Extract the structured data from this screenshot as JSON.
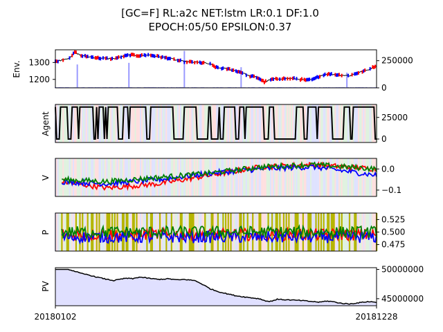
{
  "figure": {
    "title_line1": "[GC=F] RL:a2c NET:lstm LR:0.1 DF:1.0",
    "title_line2": "EPOCH:05/50 EPSILON:0.37"
  },
  "colors": {
    "buy": "#ff0000",
    "sell": "#0000ff",
    "hold": "#008000",
    "volume": "#9999ff",
    "agent_line": "#000000",
    "pv_fill": "#e0e0ff",
    "exploration": "#b5b500"
  },
  "x_axis": {
    "start_label": "20180102",
    "end_label": "20181228",
    "num_days": 250
  },
  "chart_data": [
    {
      "panel": "env",
      "type": "line",
      "ylabel": "Env.",
      "ylim": [
        1150,
        1375
      ],
      "yticks": [
        "1200",
        "1300"
      ],
      "twin_ylim": [
        0,
        350000
      ],
      "twin_yticks": [
        "0",
        "250000"
      ],
      "price_path": [
        {
          "x": 0,
          "y": 1305
        },
        {
          "x": 12,
          "y": 1330
        },
        {
          "x": 15,
          "y": 1362
        },
        {
          "x": 20,
          "y": 1340
        },
        {
          "x": 25,
          "y": 1335
        },
        {
          "x": 35,
          "y": 1325
        },
        {
          "x": 45,
          "y": 1322
        },
        {
          "x": 52,
          "y": 1335
        },
        {
          "x": 58,
          "y": 1345
        },
        {
          "x": 65,
          "y": 1340
        },
        {
          "x": 72,
          "y": 1345
        },
        {
          "x": 80,
          "y": 1335
        },
        {
          "x": 88,
          "y": 1325
        },
        {
          "x": 95,
          "y": 1312
        },
        {
          "x": 100,
          "y": 1305
        },
        {
          "x": 110,
          "y": 1300
        },
        {
          "x": 115,
          "y": 1298
        },
        {
          "x": 120,
          "y": 1290
        },
        {
          "x": 125,
          "y": 1270
        },
        {
          "x": 130,
          "y": 1265
        },
        {
          "x": 135,
          "y": 1260
        },
        {
          "x": 140,
          "y": 1250
        },
        {
          "x": 145,
          "y": 1240
        },
        {
          "x": 150,
          "y": 1220
        },
        {
          "x": 155,
          "y": 1215
        },
        {
          "x": 158,
          "y": 1205
        },
        {
          "x": 162,
          "y": 1185
        },
        {
          "x": 168,
          "y": 1200
        },
        {
          "x": 175,
          "y": 1205
        },
        {
          "x": 185,
          "y": 1205
        },
        {
          "x": 195,
          "y": 1195
        },
        {
          "x": 200,
          "y": 1200
        },
        {
          "x": 205,
          "y": 1220
        },
        {
          "x": 210,
          "y": 1232
        },
        {
          "x": 215,
          "y": 1230
        },
        {
          "x": 222,
          "y": 1225
        },
        {
          "x": 228,
          "y": 1222
        },
        {
          "x": 235,
          "y": 1240
        },
        {
          "x": 242,
          "y": 1255
        },
        {
          "x": 249,
          "y": 1282
        }
      ],
      "volume_spikes": [
        {
          "x": 17,
          "v": 215000
        },
        {
          "x": 57,
          "v": 230000
        },
        {
          "x": 100,
          "v": 340000
        },
        {
          "x": 144,
          "v": 190000
        },
        {
          "x": 226,
          "v": 140000
        }
      ]
    },
    {
      "panel": "agent",
      "type": "line",
      "ylabel": "Agent",
      "ylim": [
        -4000,
        40000
      ],
      "yticks": [
        "0",
        "25000"
      ],
      "levels": [
        0,
        37000
      ],
      "note": "number of units held by the agent, oscillating between 0 and the maximum"
    },
    {
      "panel": "value",
      "type": "line",
      "ylabel": "V",
      "ylim": [
        -0.13,
        0.05
      ],
      "yticks": [
        "0.0",
        "−0.1"
      ],
      "series": [
        {
          "color": "red",
          "path": [
            {
              "x": 5,
              "y": -0.06
            },
            {
              "x": 40,
              "y": -0.09
            },
            {
              "x": 80,
              "y": -0.07
            },
            {
              "x": 120,
              "y": -0.03
            },
            {
              "x": 160,
              "y": 0.01
            },
            {
              "x": 200,
              "y": 0.02
            },
            {
              "x": 249,
              "y": 0.0
            }
          ]
        },
        {
          "color": "blue",
          "path": [
            {
              "x": 5,
              "y": -0.06
            },
            {
              "x": 40,
              "y": -0.07
            },
            {
              "x": 80,
              "y": -0.05
            },
            {
              "x": 120,
              "y": -0.02
            },
            {
              "x": 160,
              "y": 0.0
            },
            {
              "x": 200,
              "y": 0.01
            },
            {
              "x": 249,
              "y": -0.03
            }
          ]
        },
        {
          "color": "green",
          "path": [
            {
              "x": 5,
              "y": -0.05
            },
            {
              "x": 40,
              "y": -0.06
            },
            {
              "x": 80,
              "y": -0.04
            },
            {
              "x": 120,
              "y": -0.02
            },
            {
              "x": 160,
              "y": 0.01
            },
            {
              "x": 200,
              "y": 0.02
            },
            {
              "x": 249,
              "y": 0.0
            }
          ]
        }
      ]
    },
    {
      "panel": "policy",
      "type": "line",
      "ylabel": "P",
      "ylim": [
        0.462,
        0.538
      ],
      "yticks": [
        "0.525",
        "0.500",
        "0.475"
      ],
      "series_center": [
        0.495,
        0.49,
        0.5
      ],
      "series_amplitude": 0.012
    },
    {
      "panel": "pv",
      "type": "area",
      "ylabel": "PV",
      "ylim": [
        43800000,
        50300000
      ],
      "yticks": [
        "50000000",
        "45000000"
      ],
      "path": [
        {
          "x": 0,
          "y": 50000000
        },
        {
          "x": 10,
          "y": 50000000
        },
        {
          "x": 15,
          "y": 49700000
        },
        {
          "x": 20,
          "y": 49300000
        },
        {
          "x": 25,
          "y": 49100000
        },
        {
          "x": 30,
          "y": 48800000
        },
        {
          "x": 38,
          "y": 48400000
        },
        {
          "x": 45,
          "y": 48100000
        },
        {
          "x": 50,
          "y": 48300000
        },
        {
          "x": 55,
          "y": 48500000
        },
        {
          "x": 60,
          "y": 48400000
        },
        {
          "x": 65,
          "y": 48700000
        },
        {
          "x": 72,
          "y": 48500000
        },
        {
          "x": 80,
          "y": 48300000
        },
        {
          "x": 88,
          "y": 48400000
        },
        {
          "x": 95,
          "y": 48200000
        },
        {
          "x": 100,
          "y": 48300000
        },
        {
          "x": 108,
          "y": 48100000
        },
        {
          "x": 112,
          "y": 47700000
        },
        {
          "x": 116,
          "y": 47200000
        },
        {
          "x": 120,
          "y": 46700000
        },
        {
          "x": 125,
          "y": 46300000
        },
        {
          "x": 130,
          "y": 46000000
        },
        {
          "x": 140,
          "y": 45500000
        },
        {
          "x": 150,
          "y": 45200000
        },
        {
          "x": 158,
          "y": 45000000
        },
        {
          "x": 162,
          "y": 44700000
        },
        {
          "x": 166,
          "y": 44500000
        },
        {
          "x": 172,
          "y": 44900000
        },
        {
          "x": 180,
          "y": 44800000
        },
        {
          "x": 190,
          "y": 44700000
        },
        {
          "x": 200,
          "y": 44500000
        },
        {
          "x": 205,
          "y": 44400000
        },
        {
          "x": 210,
          "y": 44600000
        },
        {
          "x": 215,
          "y": 44500000
        },
        {
          "x": 222,
          "y": 44200000
        },
        {
          "x": 228,
          "y": 44100000
        },
        {
          "x": 235,
          "y": 44300000
        },
        {
          "x": 242,
          "y": 44500000
        },
        {
          "x": 249,
          "y": 44400000
        }
      ]
    }
  ]
}
